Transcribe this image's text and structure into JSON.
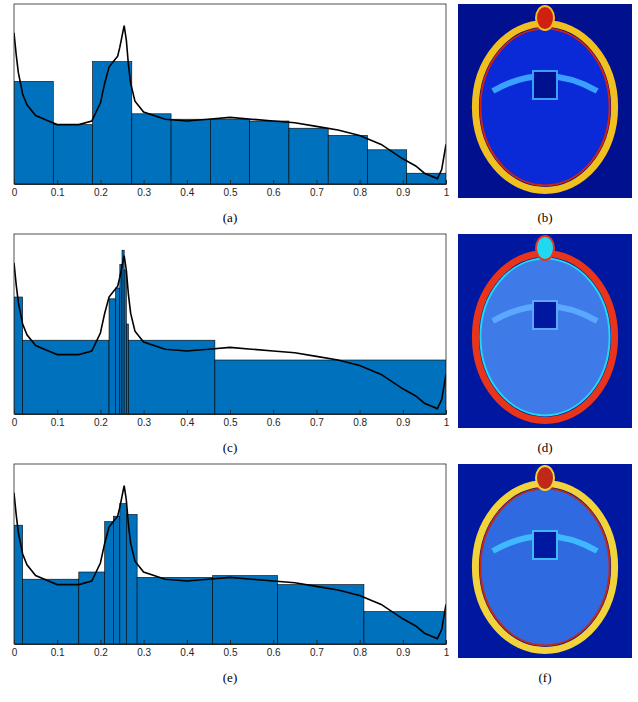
{
  "chart_data": [
    {
      "type": "histogram",
      "title": "(a)",
      "tick_labels": "x",
      "color": "#0072bd",
      "xlim": [
        0,
        1
      ],
      "ylim": [
        0,
        100
      ],
      "xticks": [
        0,
        0.1,
        0.2,
        0.3,
        0.4,
        0.5,
        0.6,
        0.7,
        0.8,
        0.9,
        1
      ],
      "bins": [
        0,
        0.0909,
        0.1818,
        0.2727,
        0.3636,
        0.4545,
        0.5455,
        0.6364,
        0.7273,
        0.8182,
        0.9091,
        1
      ],
      "counts": [
        57,
        33,
        68,
        39,
        36,
        36,
        35,
        31,
        27,
        19,
        6
      ],
      "series": [
        {
          "type": "line",
          "color": "#000000",
          "x": [
            0,
            0.005,
            0.01,
            0.02,
            0.03,
            0.05,
            0.08,
            0.1,
            0.15,
            0.18,
            0.2,
            0.21,
            0.22,
            0.23,
            0.24,
            0.245,
            0.25,
            0.255,
            0.26,
            0.265,
            0.27,
            0.28,
            0.3,
            0.35,
            0.4,
            0.45,
            0.5,
            0.55,
            0.6,
            0.65,
            0.7,
            0.75,
            0.8,
            0.85,
            0.9,
            0.93,
            0.95,
            0.98,
            0.99,
            1
          ],
          "values": [
            84,
            72,
            62,
            50,
            44,
            38,
            35,
            33,
            33,
            35,
            45,
            56,
            65,
            68,
            71,
            76,
            82,
            88,
            80,
            66,
            56,
            46,
            40,
            36,
            35,
            36,
            37,
            36,
            35,
            34,
            32,
            30,
            27,
            22,
            14,
            10,
            6,
            3,
            8,
            22
          ]
        }
      ]
    },
    {
      "type": "histogram",
      "title": "(c)",
      "tick_labels": "x",
      "color": "#0072bd",
      "xlim": [
        0,
        1
      ],
      "ylim": [
        0,
        100
      ],
      "xticks": [
        0,
        0.1,
        0.2,
        0.3,
        0.4,
        0.5,
        0.6,
        0.7,
        0.8,
        0.9,
        1
      ],
      "bins": [
        0,
        0.02,
        0.22,
        0.235,
        0.245,
        0.25,
        0.255,
        0.26,
        0.265,
        0.465,
        1
      ],
      "counts": [
        65,
        41,
        64,
        70,
        83,
        91,
        80,
        50,
        41,
        30
      ],
      "series": [
        {
          "type": "line",
          "color": "#000000",
          "x": [
            0,
            0.005,
            0.01,
            0.02,
            0.03,
            0.05,
            0.08,
            0.1,
            0.15,
            0.18,
            0.2,
            0.21,
            0.22,
            0.23,
            0.24,
            0.245,
            0.25,
            0.255,
            0.26,
            0.265,
            0.27,
            0.28,
            0.3,
            0.35,
            0.4,
            0.45,
            0.5,
            0.55,
            0.6,
            0.65,
            0.7,
            0.75,
            0.8,
            0.85,
            0.9,
            0.93,
            0.95,
            0.98,
            0.99,
            1
          ],
          "values": [
            84,
            72,
            62,
            50,
            44,
            38,
            35,
            33,
            33,
            35,
            45,
            56,
            65,
            68,
            71,
            76,
            82,
            88,
            80,
            66,
            56,
            46,
            40,
            36,
            35,
            36,
            37,
            36,
            35,
            34,
            32,
            30,
            27,
            22,
            14,
            10,
            6,
            3,
            8,
            22
          ]
        }
      ]
    },
    {
      "type": "histogram",
      "title": "(e)",
      "tick_labels": "x",
      "color": "#0072bd",
      "xlim": [
        0,
        1
      ],
      "ylim": [
        0,
        100
      ],
      "xticks": [
        0,
        0.1,
        0.2,
        0.3,
        0.4,
        0.5,
        0.6,
        0.7,
        0.8,
        0.9,
        1
      ],
      "bins": [
        0,
        0.02,
        0.15,
        0.21,
        0.23,
        0.245,
        0.26,
        0.285,
        0.46,
        0.61,
        0.81,
        1
      ],
      "counts": [
        66,
        36,
        40,
        68,
        71,
        78,
        72,
        37,
        38,
        33,
        18
      ],
      "series": [
        {
          "type": "line",
          "color": "#000000",
          "x": [
            0,
            0.005,
            0.01,
            0.02,
            0.03,
            0.05,
            0.08,
            0.1,
            0.15,
            0.18,
            0.2,
            0.21,
            0.22,
            0.23,
            0.24,
            0.245,
            0.25,
            0.255,
            0.26,
            0.265,
            0.27,
            0.28,
            0.3,
            0.35,
            0.4,
            0.45,
            0.5,
            0.55,
            0.6,
            0.65,
            0.7,
            0.75,
            0.8,
            0.85,
            0.9,
            0.93,
            0.95,
            0.98,
            0.99,
            1
          ],
          "values": [
            84,
            72,
            62,
            50,
            44,
            38,
            35,
            33,
            33,
            35,
            45,
            56,
            65,
            68,
            71,
            76,
            82,
            88,
            80,
            66,
            56,
            46,
            40,
            36,
            35,
            36,
            37,
            36,
            35,
            34,
            32,
            30,
            27,
            22,
            14,
            10,
            6,
            3,
            8,
            22
          ]
        }
      ]
    }
  ],
  "images": [
    {
      "label": "(b)"
    },
    {
      "label": "(d)"
    },
    {
      "label": "(f)"
    }
  ]
}
